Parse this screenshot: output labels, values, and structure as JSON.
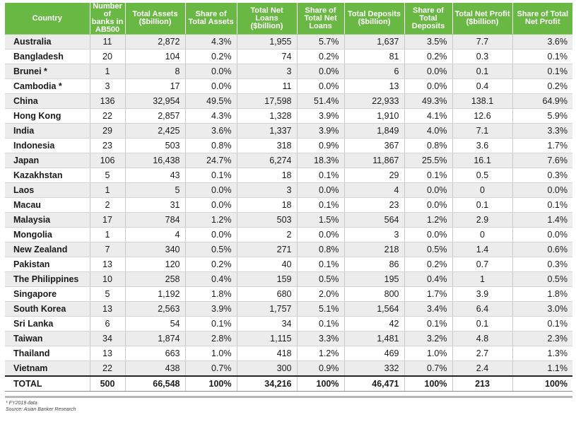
{
  "columns": [
    "Country",
    "Number of banks in AB500",
    "Total Assets ($billion)",
    "Share of Total Assets",
    "Total Net Loans ($billion)",
    "Share of Total Net Loans",
    "Total Deposits ($billion)",
    "Share of Total Deposits",
    "Total Net Profit ($billion)",
    "Share of Total Net Profit"
  ],
  "rows": [
    [
      "Australia",
      "11",
      "2,872",
      "4.3%",
      "1,955",
      "5.7%",
      "1,637",
      "3.5%",
      "7.7",
      "3.6%"
    ],
    [
      "Bangladesh",
      "20",
      "104",
      "0.2%",
      "74",
      "0.2%",
      "81",
      "0.2%",
      "0.3",
      "0.1%"
    ],
    [
      "Brunei *",
      "1",
      "8",
      "0.0%",
      "3",
      "0.0%",
      "6",
      "0.0%",
      "0.1",
      "0.1%"
    ],
    [
      "Cambodia *",
      "3",
      "17",
      "0.0%",
      "11",
      "0.0%",
      "13",
      "0.0%",
      "0.4",
      "0.2%"
    ],
    [
      "China",
      "136",
      "32,954",
      "49.5%",
      "17,598",
      "51.4%",
      "22,933",
      "49.3%",
      "138.1",
      "64.9%"
    ],
    [
      "Hong Kong",
      "22",
      "2,857",
      "4.3%",
      "1,328",
      "3.9%",
      "1,910",
      "4.1%",
      "12.6",
      "5.9%"
    ],
    [
      "India",
      "29",
      "2,425",
      "3.6%",
      "1,337",
      "3.9%",
      "1,849",
      "4.0%",
      "7.1",
      "3.3%"
    ],
    [
      "Indonesia",
      "23",
      "503",
      "0.8%",
      "318",
      "0.9%",
      "367",
      "0.8%",
      "3.6",
      "1.7%"
    ],
    [
      "Japan",
      "106",
      "16,438",
      "24.7%",
      "6,274",
      "18.3%",
      "11,867",
      "25.5%",
      "16.1",
      "7.6%"
    ],
    [
      "Kazakhstan",
      "5",
      "43",
      "0.1%",
      "18",
      "0.1%",
      "29",
      "0.1%",
      "0.5",
      "0.3%"
    ],
    [
      "Laos",
      "1",
      "5",
      "0.0%",
      "3",
      "0.0%",
      "4",
      "0.0%",
      "0",
      "0.0%"
    ],
    [
      "Macau",
      "2",
      "31",
      "0.0%",
      "18",
      "0.1%",
      "23",
      "0.0%",
      "0.1",
      "0.1%"
    ],
    [
      "Malaysia",
      "17",
      "784",
      "1.2%",
      "503",
      "1.5%",
      "564",
      "1.2%",
      "2.9",
      "1.4%"
    ],
    [
      "Mongolia",
      "1",
      "4",
      "0.0%",
      "2",
      "0.0%",
      "3",
      "0.0%",
      "0",
      "0.0%"
    ],
    [
      "New Zealand",
      "7",
      "340",
      "0.5%",
      "271",
      "0.8%",
      "218",
      "0.5%",
      "1.4",
      "0.6%"
    ],
    [
      "Pakistan",
      "13",
      "120",
      "0.2%",
      "40",
      "0.1%",
      "86",
      "0.2%",
      "0.7",
      "0.3%"
    ],
    [
      "The Philippines",
      "10",
      "258",
      "0.4%",
      "159",
      "0.5%",
      "195",
      "0.4%",
      "1",
      "0.5%"
    ],
    [
      "Singapore",
      "5",
      "1,192",
      "1.8%",
      "680",
      "2.0%",
      "800",
      "1.7%",
      "3.9",
      "1.8%"
    ],
    [
      "South Korea",
      "13",
      "2,563",
      "3.9%",
      "1,757",
      "5.1%",
      "1,564",
      "3.4%",
      "6.4",
      "3.0%"
    ],
    [
      "Sri Lanka",
      "6",
      "54",
      "0.1%",
      "34",
      "0.1%",
      "42",
      "0.1%",
      "0.1",
      "0.1%"
    ],
    [
      "Taiwan",
      "34",
      "1,874",
      "2.8%",
      "1,115",
      "3.3%",
      "1,481",
      "3.2%",
      "4.8",
      "2.3%"
    ],
    [
      "Thailand",
      "13",
      "663",
      "1.0%",
      "418",
      "1.2%",
      "469",
      "1.0%",
      "2.7",
      "1.3%"
    ],
    [
      "Vietnam",
      "22",
      "438",
      "0.7%",
      "300",
      "0.9%",
      "332",
      "0.7%",
      "2.4",
      "1.1%"
    ]
  ],
  "total": [
    "TOTAL",
    "500",
    "66,548",
    "100%",
    "34,216",
    "100%",
    "46,471",
    "100%",
    "213",
    "100%"
  ],
  "footnotes": [
    "* FY2019 data",
    "Source: Asian Banker Research"
  ],
  "colors": {
    "header_bg": "#69b843",
    "stripe_bg": "#ececec"
  }
}
